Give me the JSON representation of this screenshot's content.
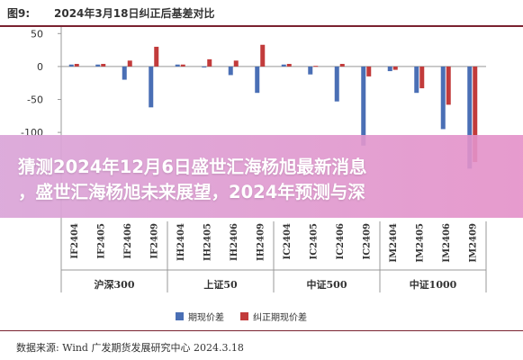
{
  "figure": {
    "label": "图9:",
    "title": "2024年3月18日纠正后基差对比"
  },
  "chart_data": {
    "type": "bar",
    "categories": [
      "IF2404",
      "IF2405",
      "IF2406",
      "IF2409",
      "IH2404",
      "IH2405",
      "IH2406",
      "IH2409",
      "IC2404",
      "IC2405",
      "IC2406",
      "IC2409",
      "IM2404",
      "IM2405",
      "IM2406",
      "IM2409"
    ],
    "groups": [
      "沪深300",
      "上证50",
      "中证500",
      "中证1000"
    ],
    "series": [
      {
        "name": "期现价差",
        "color": "#4a6fb5",
        "values": [
          3,
          3,
          -20,
          -62,
          3,
          -1,
          -13,
          -40,
          3,
          -12,
          -53,
          -120,
          -7,
          -40,
          -95,
          -155
        ]
      },
      {
        "name": "纠正期现价差",
        "color": "#c23b3b",
        "values": [
          4,
          4,
          9,
          30,
          3,
          11,
          9,
          33,
          4,
          1,
          4,
          -15,
          -5,
          -33,
          -58,
          -145
        ]
      }
    ],
    "yticks": [
      50,
      0,
      -50,
      -100,
      -150
    ],
    "ylim": [
      -190,
      60
    ]
  },
  "legend": {
    "items": [
      {
        "label": "期现价差",
        "color": "#4a6fb5"
      },
      {
        "label": "纠正期现价差",
        "color": "#c23b3b"
      }
    ]
  },
  "source": "数据来源: Wind  广发期货发展研究中心  2024.3.18",
  "overlay": {
    "line1": "猜测2024年12月6日盛世汇海杨旭最新消息",
    "line2": "，盛世汇海杨旭未来展望，2024年预测与深"
  }
}
